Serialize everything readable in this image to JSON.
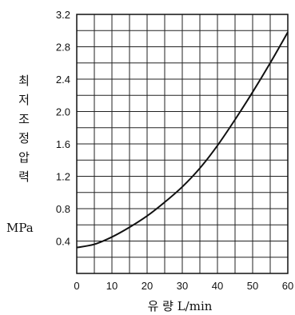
{
  "chart_data": {
    "type": "line",
    "xlabel": "유 량  L/min",
    "ylabel": [
      "최",
      "저",
      "조",
      "정",
      "압",
      "력"
    ],
    "yunit": "MPa",
    "xlim": [
      0,
      60
    ],
    "ylim": [
      0,
      3.2
    ],
    "x_ticks": [
      "0",
      "10",
      "20",
      "30",
      "40",
      "50",
      "60"
    ],
    "y_ticks": [
      "0.4",
      "0.8",
      "1.2",
      "1.6",
      "2.0",
      "2.4",
      "2.8",
      "3.2"
    ],
    "grid": true,
    "series": [
      {
        "x": [
          0,
          5,
          10,
          15,
          20,
          25,
          30,
          35,
          40,
          45,
          50,
          55,
          60
        ],
        "values": [
          0.32,
          0.36,
          0.45,
          0.57,
          0.71,
          0.88,
          1.07,
          1.3,
          1.58,
          1.9,
          2.24,
          2.6,
          2.98
        ]
      }
    ]
  }
}
